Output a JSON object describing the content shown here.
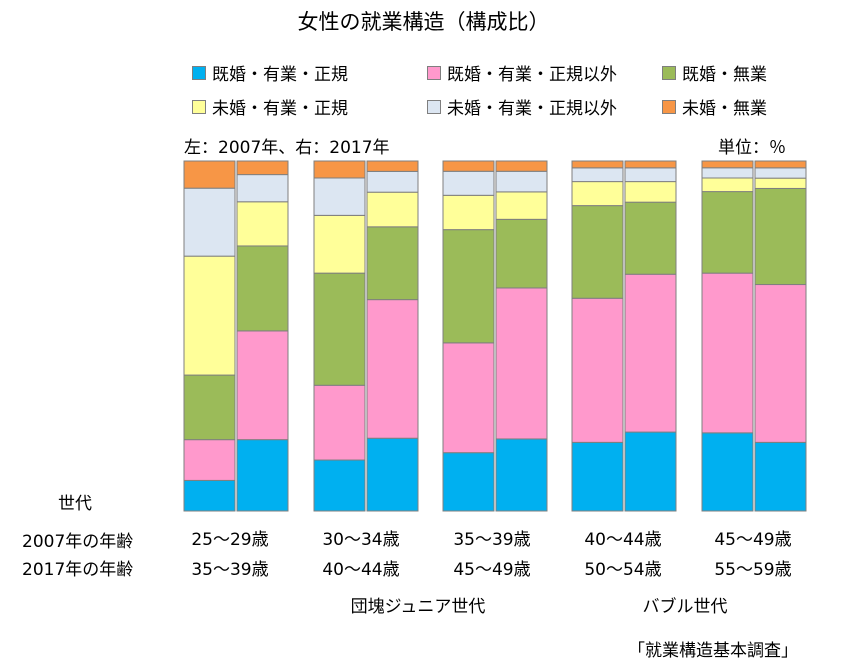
{
  "chart_data": {
    "type": "bar",
    "stacked": true,
    "title": "女性の就業構造（構成比）",
    "note": "左：2007年、右：2017年",
    "unit_label": "単位：％",
    "ylim": [
      0,
      100
    ],
    "colors": {
      "既婚・有業・正規": "#00b0f0",
      "既婚・有業・正規以外": "#ff99cc",
      "既婚・無業": "#9bbb59",
      "未婚・有業・正規": "#ffff99",
      "未婚・有業・正規以外": "#dce6f2",
      "未婚・無業": "#f79646"
    },
    "legend": [
      "既婚・有業・正規",
      "既婚・有業・正規以外",
      "既婚・無業",
      "未婚・有業・正規",
      "未婚・有業・正規以外",
      "未婚・無業"
    ],
    "groups": [
      {
        "age_2007": "25〜29歳",
        "age_2017": "35〜39歳",
        "bars": [
          {
            "year": "2007",
            "values": [
              9,
              12,
              19,
              35,
              20,
              8
            ]
          },
          {
            "year": "2017",
            "values": [
              21,
              32,
              25,
              13,
              8,
              4
            ]
          }
        ]
      },
      {
        "age_2007": "30〜34歳",
        "age_2017": "40〜44歳",
        "bars": [
          {
            "year": "2007",
            "values": [
              15,
              22,
              33,
              17,
              11,
              5
            ]
          },
          {
            "year": "2017",
            "values": [
              21,
              40,
              21,
              10,
              6,
              3
            ]
          }
        ]
      },
      {
        "age_2007": "35〜39歳",
        "age_2017": "45〜49歳",
        "bars": [
          {
            "year": "2007",
            "values": [
              17,
              32,
              33,
              10,
              7,
              3
            ]
          },
          {
            "year": "2017",
            "values": [
              21,
              44,
              20,
              8,
              6,
              3
            ]
          }
        ]
      },
      {
        "age_2007": "40〜44歳",
        "age_2017": "50〜54歳",
        "bars": [
          {
            "year": "2007",
            "values": [
              20,
              42,
              27,
              7,
              4,
              2
            ]
          },
          {
            "year": "2017",
            "values": [
              23,
              46,
              21,
              6,
              4,
              2
            ]
          }
        ]
      },
      {
        "age_2007": "45〜49歳",
        "age_2017": "55〜59歳",
        "bars": [
          {
            "year": "2007",
            "values": [
              23,
              47,
              24,
              4,
              3,
              2
            ]
          },
          {
            "year": "2017",
            "values": [
              20,
              46,
              28,
              3,
              3,
              2
            ]
          }
        ]
      }
    ],
    "row_labels": {
      "generation": "世代",
      "age_2007": "2007年の年齢",
      "age_2017": "2017年の年齢"
    },
    "generation_labels": [
      "団塊ジュニア世代",
      "バブル世代"
    ],
    "source": "「就業構造基本調査」"
  }
}
